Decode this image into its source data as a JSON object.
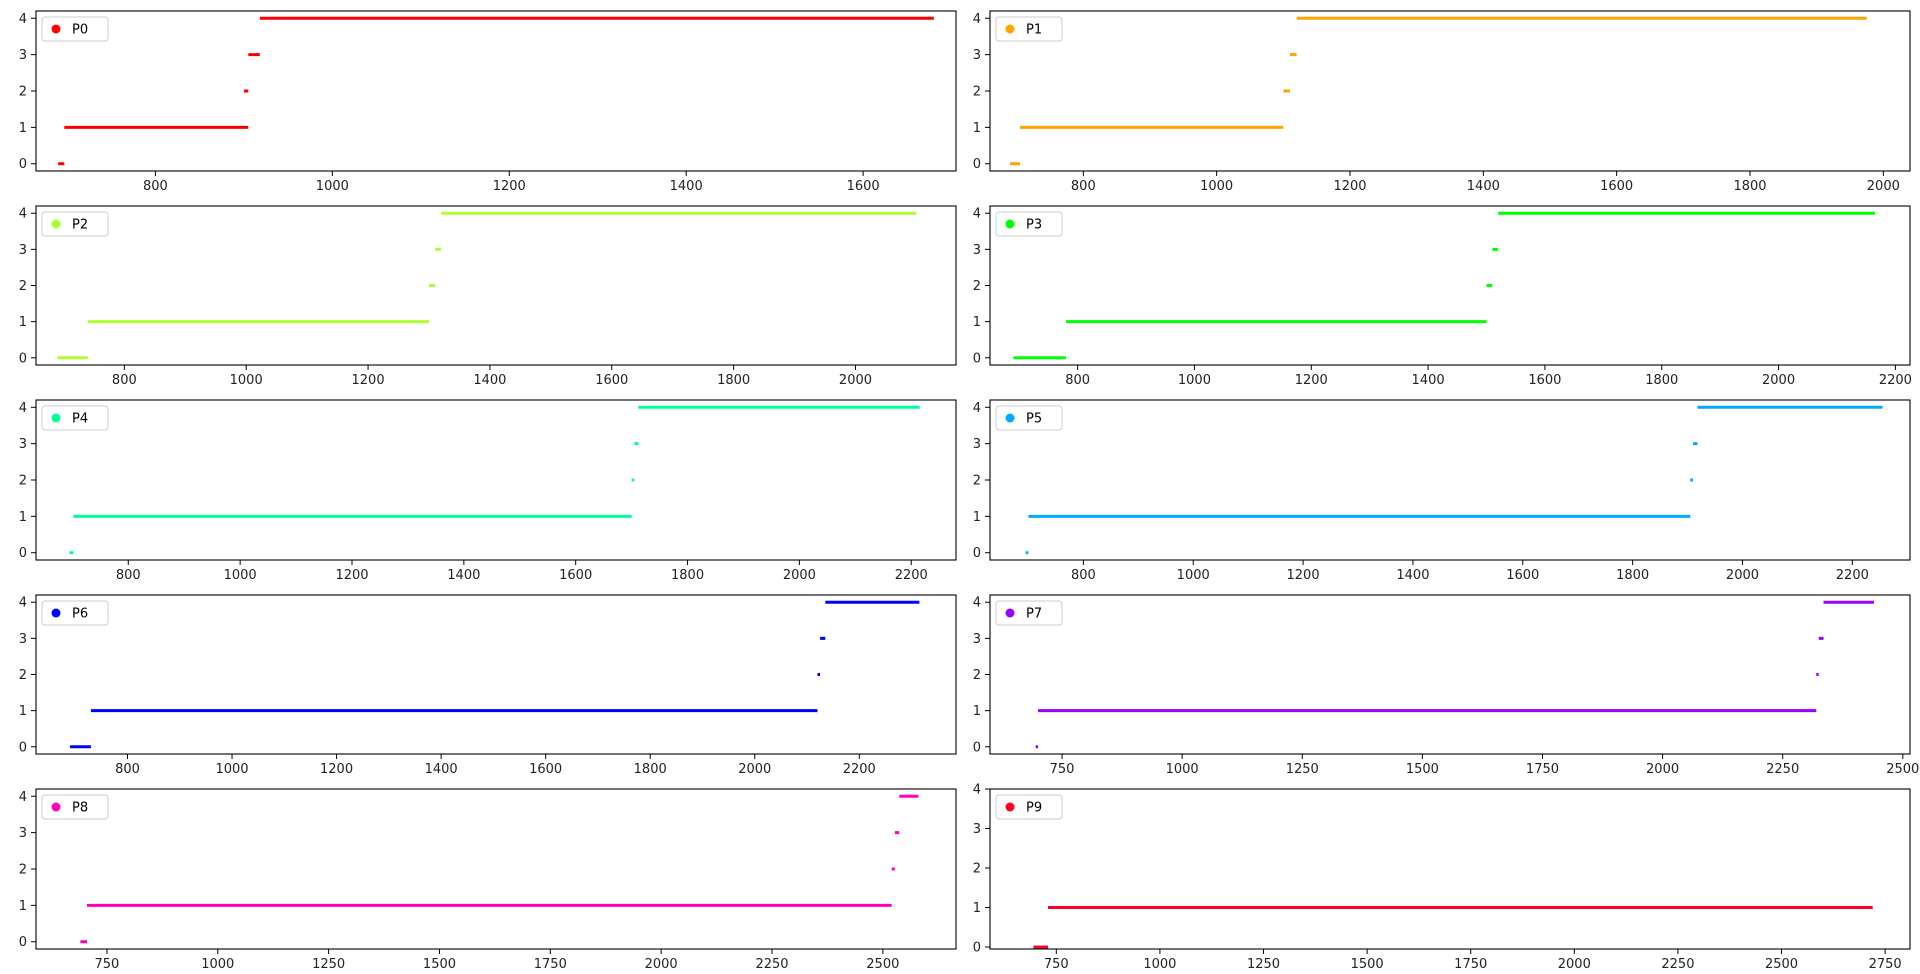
{
  "chart_data": [
    {
      "type": "timeline",
      "label": "P0",
      "color": "#ff0000",
      "xticks": [
        800,
        1000,
        1200,
        1400,
        1600
      ],
      "xlim": [
        665,
        1705
      ],
      "yticks": [
        0,
        1,
        2,
        3,
        4
      ],
      "ylim": [
        -0.2,
        4.2
      ],
      "segments": [
        {
          "state": 0,
          "start": 690,
          "end": 697
        },
        {
          "state": 1,
          "start": 697,
          "end": 905
        },
        {
          "state": 2,
          "start": 900,
          "end": 905
        },
        {
          "state": 3,
          "start": 905,
          "end": 918
        },
        {
          "state": 4,
          "start": 918,
          "end": 1680
        }
      ]
    },
    {
      "type": "timeline",
      "label": "P1",
      "color": "#ffa500",
      "xticks": [
        800,
        1000,
        1200,
        1400,
        1600,
        1800,
        2000
      ],
      "xlim": [
        660,
        2040
      ],
      "yticks": [
        0,
        1,
        2,
        3,
        4
      ],
      "ylim": [
        -0.2,
        4.2
      ],
      "segments": [
        {
          "state": 0,
          "start": 690,
          "end": 705
        },
        {
          "state": 1,
          "start": 705,
          "end": 1100
        },
        {
          "state": 2,
          "start": 1100,
          "end": 1110
        },
        {
          "state": 3,
          "start": 1110,
          "end": 1120
        },
        {
          "state": 4,
          "start": 1120,
          "end": 1975
        }
      ]
    },
    {
      "type": "timeline",
      "label": "P2",
      "color": "#adff2f",
      "xticks": [
        800,
        1000,
        1200,
        1400,
        1600,
        1800,
        2000
      ],
      "xlim": [
        655,
        2165
      ],
      "yticks": [
        0,
        1,
        2,
        3,
        4
      ],
      "ylim": [
        -0.2,
        4.2
      ],
      "segments": [
        {
          "state": 0,
          "start": 690,
          "end": 740
        },
        {
          "state": 1,
          "start": 740,
          "end": 1300
        },
        {
          "state": 2,
          "start": 1300,
          "end": 1310
        },
        {
          "state": 3,
          "start": 1310,
          "end": 1320
        },
        {
          "state": 4,
          "start": 1320,
          "end": 2100
        }
      ]
    },
    {
      "type": "timeline",
      "label": "P3",
      "color": "#00ff00",
      "xticks": [
        800,
        1000,
        1200,
        1400,
        1600,
        1800,
        2000,
        2200
      ],
      "xlim": [
        650,
        2225
      ],
      "yticks": [
        0,
        1,
        2,
        3,
        4
      ],
      "ylim": [
        -0.2,
        4.2
      ],
      "segments": [
        {
          "state": 0,
          "start": 690,
          "end": 780
        },
        {
          "state": 1,
          "start": 780,
          "end": 1500
        },
        {
          "state": 2,
          "start": 1500,
          "end": 1510
        },
        {
          "state": 3,
          "start": 1510,
          "end": 1520
        },
        {
          "state": 4,
          "start": 1520,
          "end": 2165
        }
      ]
    },
    {
      "type": "timeline",
      "label": "P4",
      "color": "#00ff99",
      "xticks": [
        800,
        1000,
        1200,
        1400,
        1600,
        1800,
        2000,
        2200
      ],
      "xlim": [
        635,
        2280
      ],
      "yticks": [
        0,
        1,
        2,
        3,
        4
      ],
      "ylim": [
        -0.2,
        4.2
      ],
      "segments": [
        {
          "state": 0,
          "start": 695,
          "end": 702
        },
        {
          "state": 1,
          "start": 702,
          "end": 1700
        },
        {
          "state": 2,
          "start": 1700,
          "end": 1705
        },
        {
          "state": 3,
          "start": 1705,
          "end": 1712
        },
        {
          "state": 4,
          "start": 1712,
          "end": 2215
        }
      ]
    },
    {
      "type": "timeline",
      "label": "P5",
      "color": "#00aaff",
      "xticks": [
        800,
        1000,
        1200,
        1400,
        1600,
        1800,
        2000,
        2200
      ],
      "xlim": [
        630,
        2305
      ],
      "yticks": [
        0,
        1,
        2,
        3,
        4
      ],
      "ylim": [
        -0.2,
        4.2
      ],
      "segments": [
        {
          "state": 0,
          "start": 695,
          "end": 700
        },
        {
          "state": 1,
          "start": 700,
          "end": 1905
        },
        {
          "state": 2,
          "start": 1905,
          "end": 1910
        },
        {
          "state": 3,
          "start": 1910,
          "end": 1918
        },
        {
          "state": 4,
          "start": 1918,
          "end": 2255
        }
      ]
    },
    {
      "type": "timeline",
      "label": "P6",
      "color": "#0000ff",
      "xticks": [
        800,
        1000,
        1200,
        1400,
        1600,
        1800,
        2000,
        2200
      ],
      "xlim": [
        625,
        2385
      ],
      "yticks": [
        0,
        1,
        2,
        3,
        4
      ],
      "ylim": [
        -0.2,
        4.2
      ],
      "segments": [
        {
          "state": 0,
          "start": 690,
          "end": 730
        },
        {
          "state": 1,
          "start": 730,
          "end": 2120
        },
        {
          "state": 2,
          "start": 2120,
          "end": 2125
        },
        {
          "state": 3,
          "start": 2125,
          "end": 2135
        },
        {
          "state": 4,
          "start": 2135,
          "end": 2315
        }
      ]
    },
    {
      "type": "timeline",
      "label": "P7",
      "color": "#9900ff",
      "xticks": [
        750,
        1000,
        1250,
        1500,
        1750,
        2000,
        2250,
        2500
      ],
      "xlim": [
        600,
        2515
      ],
      "yticks": [
        0,
        1,
        2,
        3,
        4
      ],
      "ylim": [
        -0.2,
        4.2
      ],
      "segments": [
        {
          "state": 0,
          "start": 695,
          "end": 700
        },
        {
          "state": 1,
          "start": 700,
          "end": 2320
        },
        {
          "state": 2,
          "start": 2320,
          "end": 2325
        },
        {
          "state": 3,
          "start": 2325,
          "end": 2335
        },
        {
          "state": 4,
          "start": 2335,
          "end": 2440
        }
      ]
    },
    {
      "type": "timeline",
      "label": "P8",
      "color": "#ff00bb",
      "xticks": [
        750,
        1000,
        1250,
        1500,
        1750,
        2000,
        2250,
        2500
      ],
      "xlim": [
        590,
        2665
      ],
      "yticks": [
        0,
        1,
        2,
        3,
        4
      ],
      "ylim": [
        -0.2,
        4.2
      ],
      "segments": [
        {
          "state": 0,
          "start": 690,
          "end": 705
        },
        {
          "state": 1,
          "start": 705,
          "end": 2520
        },
        {
          "state": 2,
          "start": 2520,
          "end": 2527
        },
        {
          "state": 3,
          "start": 2527,
          "end": 2537
        },
        {
          "state": 4,
          "start": 2537,
          "end": 2580
        }
      ]
    },
    {
      "type": "timeline",
      "label": "P9",
      "color": "#ff0022",
      "xticks": [
        750,
        1000,
        1250,
        1500,
        1750,
        2000,
        2250,
        2500,
        2750
      ],
      "xlim": [
        590,
        2810
      ],
      "yticks": [
        0,
        1,
        2,
        3,
        4
      ],
      "ylim": [
        -0.05,
        4
      ],
      "segments": [
        {
          "state": 0,
          "start": 695,
          "end": 730
        },
        {
          "state": 1,
          "start": 730,
          "end": 2720
        }
      ]
    }
  ]
}
